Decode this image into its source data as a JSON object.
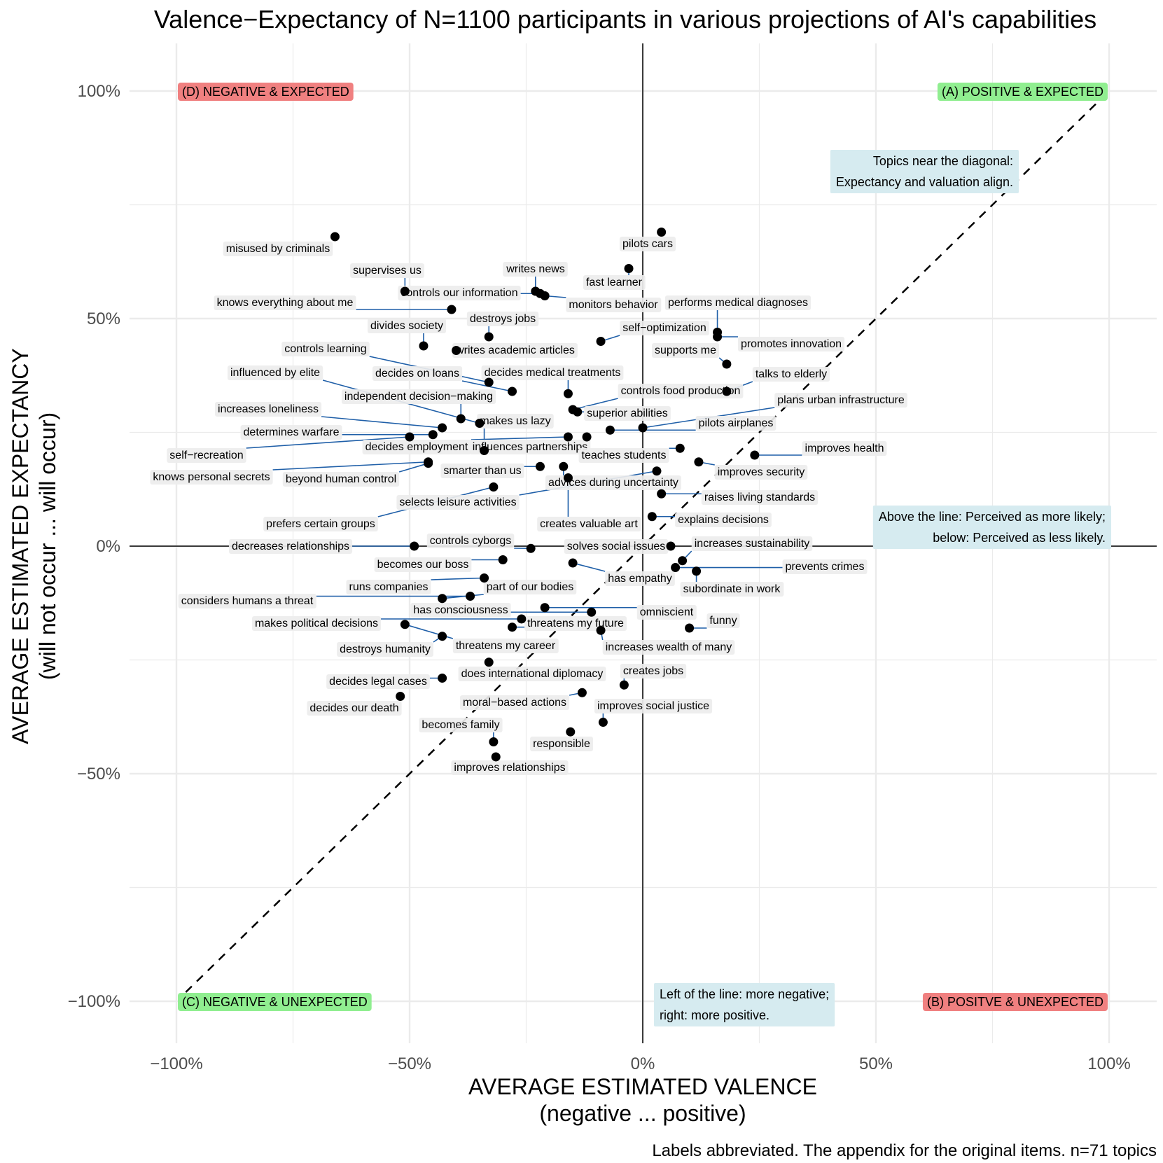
{
  "chart_data": {
    "type": "scatter",
    "title": "Valence−Expectancy of N=1100 participants in various projections of AI's capabilities",
    "xlabel": "AVERAGE ESTIMATED VALENCE",
    "xlabel_sub": "(negative ... positive)",
    "ylabel": "AVERAGE ESTIMATED EXPECTANCY",
    "ylabel_sub": "(will not occur ... will occur)",
    "caption": "Labels abbreviated. The appendix for the original items. n=71 topics",
    "xlim": [
      -1.0,
      1.0
    ],
    "ylim": [
      -1.0,
      1.0
    ],
    "x_ticks": [
      -1.0,
      -0.5,
      0,
      0.5,
      1.0
    ],
    "x_tick_labels": [
      "−100%",
      "−50%",
      "0%",
      "50%",
      "100%"
    ],
    "y_ticks": [
      1.0,
      0.5,
      0,
      -0.5,
      -1.0
    ],
    "y_tick_labels": [
      "100%",
      "50%",
      "0%",
      "−50%",
      "−100%"
    ],
    "grid": true,
    "diagonal": "dashed y = x",
    "colors": {
      "point": "#000000",
      "leader": "#1f5fa8",
      "positive_badge": "#90ee90",
      "negative_badge": "#f08080",
      "note_box": "#d6ebf0",
      "label_box": "#ededed",
      "grid": "#ebebeb"
    },
    "quadrant_labels": [
      {
        "text": "(D) NEGATIVE & EXPECTED",
        "kind": "negative",
        "corner": "top-left"
      },
      {
        "text": "(A) POSITIVE & EXPECTED",
        "kind": "positive",
        "corner": "top-right"
      },
      {
        "text": "(C) NEGATIVE & UNEXPECTED",
        "kind": "positive",
        "corner": "bottom-left"
      },
      {
        "text": "(B) POSITVE & UNEXPECTED",
        "kind": "negative",
        "corner": "bottom-right"
      }
    ],
    "notes": [
      {
        "lines": [
          "Topics near the diagonal:",
          "Expectancy and valuation align."
        ],
        "placement": "upper-right"
      },
      {
        "lines": [
          "Above the line: Perceived as more likely;",
          "below: Perceived as less likely."
        ],
        "placement": "right"
      },
      {
        "lines": [
          "Left of the line: more negative;",
          "right: more positive."
        ],
        "placement": "bottom-center"
      }
    ],
    "points": [
      {
        "label": "misused by criminals",
        "x": -0.66,
        "y": 0.68
      },
      {
        "label": "pilots cars",
        "x": 0.04,
        "y": 0.69
      },
      {
        "label": "fast learner",
        "x": -0.03,
        "y": 0.61
      },
      {
        "label": "supervises us",
        "x": -0.51,
        "y": 0.56
      },
      {
        "label": "writes news",
        "x": -0.23,
        "y": 0.56
      },
      {
        "label": "controls our information",
        "x": -0.22,
        "y": 0.555
      },
      {
        "label": "monitors behavior",
        "x": -0.21,
        "y": 0.55
      },
      {
        "label": "knows everything about me",
        "x": -0.41,
        "y": 0.52
      },
      {
        "label": "performs medical diagnoses",
        "x": 0.16,
        "y": 0.47
      },
      {
        "label": "promotes innovation",
        "x": 0.16,
        "y": 0.46
      },
      {
        "label": "destroys jobs",
        "x": -0.33,
        "y": 0.46
      },
      {
        "label": "self−optimization",
        "x": -0.09,
        "y": 0.45
      },
      {
        "label": "divides society",
        "x": -0.47,
        "y": 0.44
      },
      {
        "label": "writes academic articles",
        "x": -0.4,
        "y": 0.43
      },
      {
        "label": "supports me",
        "x": 0.18,
        "y": 0.4
      },
      {
        "label": "controls learning",
        "x": -0.33,
        "y": 0.36
      },
      {
        "label": "decides on loans",
        "x": -0.28,
        "y": 0.34
      },
      {
        "label": "decides medical treatments",
        "x": -0.16,
        "y": 0.335
      },
      {
        "label": "talks to elderly",
        "x": 0.18,
        "y": 0.34
      },
      {
        "label": "controls food production",
        "x": -0.15,
        "y": 0.3
      },
      {
        "label": "superior abilities",
        "x": -0.14,
        "y": 0.295
      },
      {
        "label": "independent decision−making",
        "x": -0.39,
        "y": 0.28
      },
      {
        "label": "influenced by elite",
        "x": -0.35,
        "y": 0.27
      },
      {
        "label": "increases loneliness",
        "x": -0.43,
        "y": 0.26
      },
      {
        "label": "plans urban infrastructure",
        "x": 0.0,
        "y": 0.26
      },
      {
        "label": "pilots airplanes",
        "x": -0.07,
        "y": 0.255
      },
      {
        "label": "determines warfare",
        "x": -0.45,
        "y": 0.245
      },
      {
        "label": "self−recreation",
        "x": -0.5,
        "y": 0.24
      },
      {
        "label": "decides employment",
        "x": -0.16,
        "y": 0.24
      },
      {
        "label": "influences partnerships",
        "x": -0.12,
        "y": 0.24
      },
      {
        "label": "makes us lazy",
        "x": -0.34,
        "y": 0.21
      },
      {
        "label": "teaches students",
        "x": 0.08,
        "y": 0.215
      },
      {
        "label": "improves health",
        "x": 0.24,
        "y": 0.2
      },
      {
        "label": "knows personal secrets",
        "x": -0.46,
        "y": 0.185
      },
      {
        "label": "beyond human control",
        "x": -0.46,
        "y": 0.182
      },
      {
        "label": "improves security",
        "x": 0.12,
        "y": 0.185
      },
      {
        "label": "smarter than us",
        "x": -0.22,
        "y": 0.175
      },
      {
        "label": "advices during uncertainty",
        "x": -0.17,
        "y": 0.175
      },
      {
        "label": "creates valuable art",
        "x": -0.16,
        "y": 0.15
      },
      {
        "label": "selects leisure activities",
        "x": 0.03,
        "y": 0.165
      },
      {
        "label": "prefers certain groups",
        "x": -0.32,
        "y": 0.13
      },
      {
        "label": "raises living standards",
        "x": 0.04,
        "y": 0.115
      },
      {
        "label": "explains decisions",
        "x": 0.02,
        "y": 0.065
      },
      {
        "label": "solves social issues",
        "x": 0.06,
        "y": 0.0
      },
      {
        "label": "increases sustainability",
        "x": 0.085,
        "y": -0.032
      },
      {
        "label": "decreases relationships",
        "x": -0.49,
        "y": 0.0
      },
      {
        "label": "controls cyborgs",
        "x": -0.24,
        "y": -0.005
      },
      {
        "label": "becomes our boss",
        "x": -0.3,
        "y": -0.03
      },
      {
        "label": "has empathy",
        "x": -0.15,
        "y": -0.037
      },
      {
        "label": "prevents crimes",
        "x": 0.07,
        "y": -0.047
      },
      {
        "label": "subordinate in work",
        "x": 0.115,
        "y": -0.055
      },
      {
        "label": "runs companies",
        "x": -0.34,
        "y": -0.07
      },
      {
        "label": "considers humans a threat",
        "x": -0.37,
        "y": -0.11
      },
      {
        "label": "part of our bodies",
        "x": -0.43,
        "y": -0.115
      },
      {
        "label": "omniscient",
        "x": -0.21,
        "y": -0.135
      },
      {
        "label": "has consciousness",
        "x": -0.11,
        "y": -0.145
      },
      {
        "label": "makes political decisions",
        "x": -0.26,
        "y": -0.16
      },
      {
        "label": "threatens my future",
        "x": -0.28,
        "y": -0.178
      },
      {
        "label": "funny",
        "x": 0.1,
        "y": -0.18
      },
      {
        "label": "increases wealth of many",
        "x": -0.09,
        "y": -0.185
      },
      {
        "label": "destroys humanity",
        "x": -0.43,
        "y": -0.198
      },
      {
        "label": "threatens my career",
        "x": -0.51,
        "y": -0.172
      },
      {
        "label": "does international diplomacy",
        "x": -0.33,
        "y": -0.255
      },
      {
        "label": "creates jobs",
        "x": -0.04,
        "y": -0.305
      },
      {
        "label": "decides legal cases",
        "x": -0.43,
        "y": -0.29
      },
      {
        "label": "decides our death",
        "x": -0.52,
        "y": -0.33
      },
      {
        "label": "moral−based actions",
        "x": -0.13,
        "y": -0.322
      },
      {
        "label": "improves social justice",
        "x": -0.085,
        "y": -0.387
      },
      {
        "label": "becomes family",
        "x": -0.32,
        "y": -0.43
      },
      {
        "label": "responsible",
        "x": -0.155,
        "y": -0.408
      },
      {
        "label": "improves relationships",
        "x": -0.315,
        "y": -0.463
      }
    ]
  }
}
